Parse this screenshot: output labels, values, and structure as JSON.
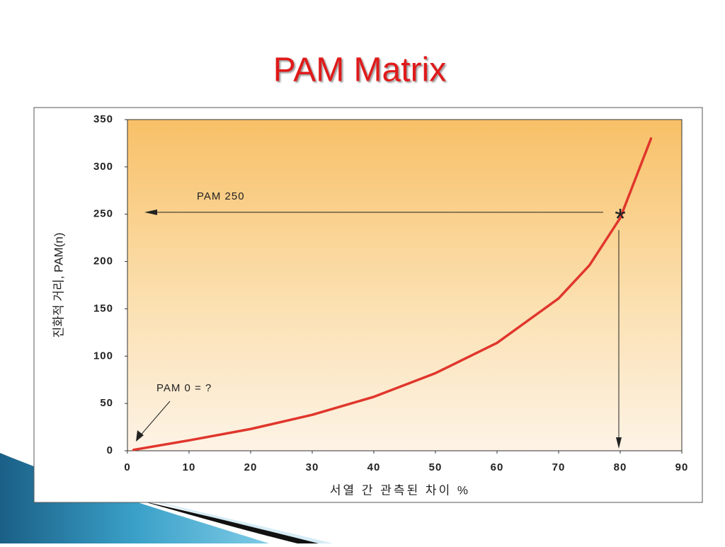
{
  "chart_data": {
    "type": "line",
    "title": "PAM Matrix",
    "x_label": "서열 간 관측된 차이 %",
    "y_label": "진화적 거리, PAM(n)",
    "x": [
      1,
      10,
      20,
      30,
      40,
      50,
      60,
      70,
      75,
      80,
      85
    ],
    "values": [
      1,
      11,
      23,
      38,
      57,
      82,
      114,
      161,
      196,
      246,
      330
    ],
    "color": "#e0362c",
    "xlim": [
      0,
      90
    ],
    "xticks": [
      0,
      10,
      20,
      30,
      40,
      50,
      60,
      70,
      80,
      90
    ],
    "ylim": [
      0,
      350
    ],
    "yticks": [
      0,
      50,
      100,
      150,
      200,
      250,
      300,
      350
    ],
    "annotations": [
      "PAM 250",
      "PAM 0 = ?",
      "*"
    ]
  }
}
